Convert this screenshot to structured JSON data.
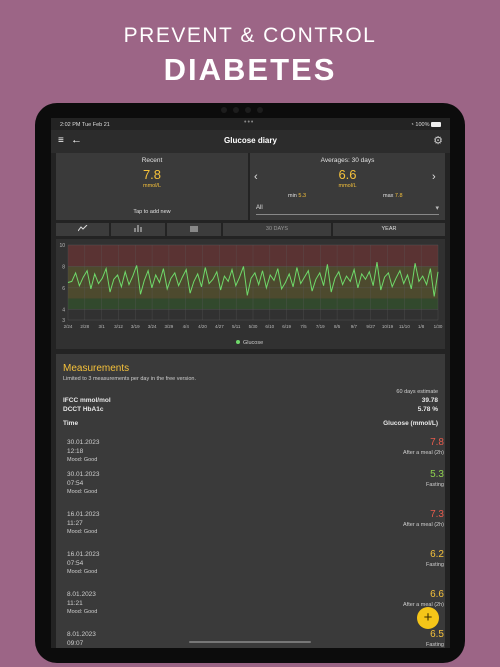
{
  "promo": {
    "line1": "PREVENT & CONTROL",
    "line2": "DIABETES"
  },
  "status": {
    "time_date": "2:02 PM   Tue Feb 21",
    "wifi": "◔",
    "battery": "100%"
  },
  "appbar": {
    "title": "Glucose diary",
    "menu_icon": "≡",
    "back_icon": "←",
    "settings_icon": "⚙"
  },
  "recent": {
    "label": "Recent",
    "value": "7.8",
    "unit": "mmol/L",
    "hint": "Tap to add new"
  },
  "averages": {
    "label": "Averages: 30 days",
    "value": "6.6",
    "unit": "mmol/L",
    "min_label": "min",
    "min_value": "5.3",
    "max_label": "max",
    "max_value": "7.8",
    "prev_icon": "‹",
    "next_icon": "›",
    "filter": "All",
    "filter_caret": "▾"
  },
  "tabs": {
    "period1": "30 DAYS",
    "period2": "YEAR"
  },
  "chart_data": {
    "type": "line",
    "x_ticks": [
      "2/24",
      "2/28",
      "3/1",
      "3/12",
      "3/19",
      "3/24",
      "3/29",
      "4/4",
      "4/20",
      "4/27",
      "5/11",
      "5/30",
      "6/10",
      "6/19",
      "7/5",
      "7/19",
      "8/5",
      "9/7",
      "9/27",
      "10/19",
      "11/10",
      "1/8",
      "1/30"
    ],
    "y_ticks": [
      "10",
      "8",
      "6",
      "4",
      "3"
    ],
    "ylim": [
      3,
      10
    ],
    "bands": [
      {
        "from": 8,
        "to": 10,
        "color": "#5a3333"
      },
      {
        "from": 5,
        "to": 8,
        "color": "#4d4a2e"
      },
      {
        "from": 4,
        "to": 5,
        "color": "#32492d"
      }
    ],
    "series": [
      {
        "name": "Glucose",
        "color": "#6fd96a",
        "values": [
          6.5,
          6.6,
          7.4,
          6.2,
          7.0,
          7.6,
          5.9,
          7.3,
          6.4,
          6.9,
          7.8,
          5.6,
          6.8,
          7.2,
          6.1,
          7.5,
          6.3,
          7.1,
          8.1,
          5.4,
          6.7,
          7.6,
          6.0,
          7.2,
          6.5,
          7.8,
          5.9,
          6.9,
          7.4,
          6.2,
          7.0,
          7.7,
          5.5,
          6.6,
          7.3,
          6.1,
          7.9,
          6.4,
          6.8,
          7.5,
          5.8,
          7.1,
          6.6,
          7.7,
          6.2,
          7.0,
          8.0,
          5.3,
          6.9,
          7.4,
          6.3,
          7.6,
          6.0,
          7.2,
          6.7,
          7.8,
          5.9,
          6.5,
          7.3,
          6.1,
          7.9,
          6.4,
          7.0,
          7.6,
          5.7,
          6.8,
          7.4,
          6.2,
          8.2,
          5.6,
          6.9,
          7.5,
          6.3,
          7.1,
          6.6,
          7.7,
          6.0,
          7.3,
          6.8,
          7.5,
          6.2,
          8.4,
          5.8,
          7.0,
          7.4,
          6.1,
          6.9,
          7.6,
          6.4,
          7.2,
          5.9,
          8.3,
          6.6,
          7.1,
          6.3,
          7.8,
          5.2,
          7.5
        ]
      }
    ]
  },
  "measurements": {
    "title": "Measurements",
    "note": "Limited to 3 measurements per day in the free version.",
    "estimate_label": "60 days estimate",
    "ifcc_label": "IFCC mmol/mol",
    "ifcc_value": "39.78",
    "dcct_label": "DCCT HbA1c",
    "dcct_value": "5.78 %",
    "col_time": "Time",
    "col_glucose": "Glucose (mmol/L)",
    "rows": [
      {
        "date": "30.01.2023",
        "time": "12:18",
        "mood": "Mood: Good",
        "value": "7.8",
        "tag": "After a meal (2h)",
        "color": "red"
      },
      {
        "date": "30.01.2023",
        "time": "07:54",
        "mood": "Mood: Good",
        "value": "5.3",
        "tag": "Fasting",
        "color": "grn"
      },
      {
        "date": "16.01.2023",
        "time": "11:27",
        "mood": "Mood: Good",
        "value": "7.3",
        "tag": "After a meal (2h)",
        "color": "red"
      },
      {
        "date": "16.01.2023",
        "time": "07:54",
        "mood": "Mood: Good",
        "value": "6.2",
        "tag": "Fasting",
        "color": "yel"
      },
      {
        "date": "8.01.2023",
        "time": "11:21",
        "mood": "Mood: Good",
        "value": "6.6",
        "tag": "After a meal (2h)",
        "color": "yel"
      },
      {
        "date": "8.01.2023",
        "time": "09:07",
        "mood": "",
        "value": "6.5",
        "tag": "Fasting",
        "color": "yel"
      }
    ]
  },
  "fab_icon": "+"
}
